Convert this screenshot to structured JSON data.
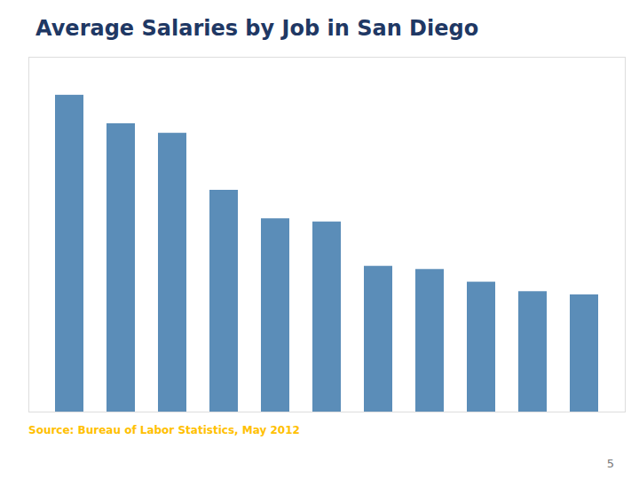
{
  "chart_data": {
    "type": "bar",
    "title": "Average Salaries by Job in San Diego",
    "categories": [
      null,
      null,
      null,
      null,
      null,
      null,
      null,
      null,
      null,
      null,
      null
    ],
    "values": [
      100,
      91,
      88,
      70,
      61,
      60,
      46,
      45,
      41,
      38,
      37
    ],
    "color": "#5B8DB8",
    "ylim": [
      0,
      112
    ],
    "tick_labels": false,
    "grid": false,
    "annotations": [
      "Source:  Bureau of Labor Statistics, May 2012",
      "5"
    ]
  }
}
